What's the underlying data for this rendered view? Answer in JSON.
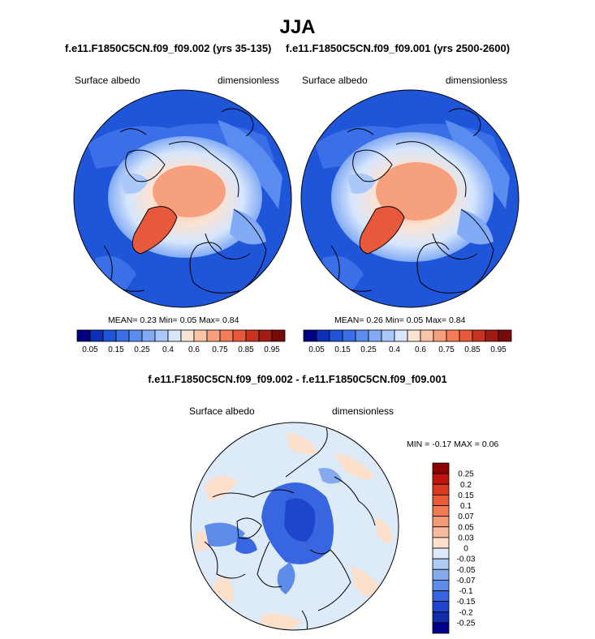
{
  "page": {
    "title": "JJA",
    "colors": {
      "ocean_blue": "#1f55d8",
      "land_line": "#000000",
      "border": "#000000"
    }
  },
  "chart_data": [
    {
      "type": "heatmap",
      "projection": "north-polar-stereographic",
      "title": "f.e11.F1850C5CN.f09_f09.002 (yrs 35-135)",
      "left_label": "Surface albedo",
      "right_label": "dimensionless",
      "stats": {
        "mean_label": "MEAN=",
        "mean": "0.23",
        "min_label": "Min=",
        "min": "0.05",
        "max_label": "Max=",
        "max": "0.84"
      },
      "colorbar": {
        "orientation": "horizontal",
        "levels": [
          "0.05",
          "0.1",
          "0.15",
          "0.2",
          "0.25",
          "0.3",
          "0.4",
          "0.5",
          "0.6",
          "0.7",
          "0.75",
          "0.8",
          "0.85",
          "0.9",
          "0.95"
        ],
        "tick_labels": [
          "0.05",
          "0.15",
          "0.25",
          "0.4",
          "0.6",
          "0.75",
          "0.85",
          "0.95"
        ],
        "colors": [
          "#000080",
          "#0d2fb8",
          "#1f55d8",
          "#3a6fe8",
          "#5a8cf0",
          "#82aaf5",
          "#aac8fa",
          "#d6e6fc",
          "#fbe3d3",
          "#f9c4a8",
          "#f7a07e",
          "#f47c56",
          "#e8583a",
          "#c8321f",
          "#a01c12",
          "#780a0a"
        ]
      }
    },
    {
      "type": "heatmap",
      "projection": "north-polar-stereographic",
      "title": "f.e11.F1850C5CN.f09_f09.001 (yrs 2500-2600)",
      "left_label": "Surface albedo",
      "right_label": "dimensionless",
      "stats": {
        "mean_label": "MEAN=",
        "mean": "0.26",
        "min_label": "Min=",
        "min": "0.05",
        "max_label": "Max=",
        "max": "0.84"
      },
      "colorbar": {
        "orientation": "horizontal",
        "levels": [
          "0.05",
          "0.1",
          "0.15",
          "0.2",
          "0.25",
          "0.3",
          "0.4",
          "0.5",
          "0.6",
          "0.7",
          "0.75",
          "0.8",
          "0.85",
          "0.9",
          "0.95"
        ],
        "tick_labels": [
          "0.05",
          "0.15",
          "0.25",
          "0.4",
          "0.6",
          "0.75",
          "0.85",
          "0.95"
        ],
        "colors": [
          "#000080",
          "#0d2fb8",
          "#1f55d8",
          "#3a6fe8",
          "#5a8cf0",
          "#82aaf5",
          "#aac8fa",
          "#d6e6fc",
          "#fbe3d3",
          "#f9c4a8",
          "#f7a07e",
          "#f47c56",
          "#e8583a",
          "#c8321f",
          "#a01c12",
          "#780a0a"
        ]
      }
    },
    {
      "type": "heatmap",
      "projection": "north-polar-stereographic",
      "title": "f.e11.F1850C5CN.f09_f09.002 - f.e11.F1850C5CN.f09_f09.001",
      "left_label": "Surface albedo",
      "right_label": "dimensionless",
      "stats": {
        "min_label": "MIN =",
        "min": "-0.17",
        "max_label": "MAX =",
        "max": "0.06"
      },
      "colorbar": {
        "orientation": "vertical",
        "levels_top_to_bottom": [
          "0.25",
          "0.2",
          "0.15",
          "0.1",
          "0.07",
          "0.05",
          "0.03",
          "0",
          "-0.03",
          "-0.05",
          "-0.07",
          "-0.1",
          "-0.15",
          "-0.2",
          "-0.25"
        ],
        "colors_top_to_bottom": [
          "#8b0000",
          "#c0150f",
          "#d83a20",
          "#e85a35",
          "#f07c56",
          "#f49a78",
          "#f8bb9e",
          "#fde0cc",
          "#ddeaf8",
          "#aecbf3",
          "#85abee",
          "#5d8be8",
          "#3866e0",
          "#1e46cc",
          "#0f2ea8",
          "#000088"
        ]
      }
    }
  ]
}
